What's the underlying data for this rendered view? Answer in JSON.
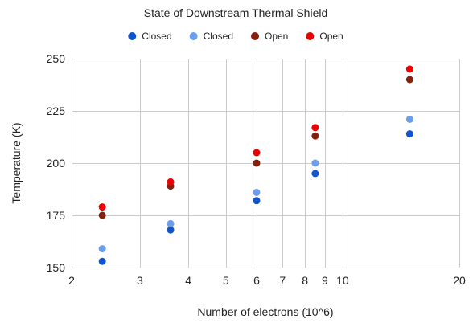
{
  "chart_data": {
    "type": "scatter",
    "title": "State of Downstream Thermal Shield",
    "xlabel": "Number of electrons (10^6)",
    "ylabel": "Temperature (K)",
    "x_scale": "log",
    "xlim": [
      2,
      20
    ],
    "ylim": [
      150,
      250
    ],
    "x_ticks": [
      2,
      3,
      4,
      5,
      6,
      7,
      8,
      9,
      10,
      20
    ],
    "y_ticks": [
      150,
      175,
      200,
      225,
      250
    ],
    "grid": true,
    "legend_position": "top",
    "series": [
      {
        "name": "Closed",
        "color": "#1155cc",
        "points": [
          [
            2.4,
            153
          ],
          [
            3.6,
            168
          ],
          [
            6.0,
            182
          ],
          [
            8.5,
            195
          ],
          [
            14.9,
            214
          ]
        ]
      },
      {
        "name": "Closed",
        "color": "#6d9eeb",
        "points": [
          [
            2.4,
            159
          ],
          [
            3.6,
            171
          ],
          [
            6.0,
            186
          ],
          [
            8.5,
            200
          ],
          [
            14.9,
            221
          ]
        ]
      },
      {
        "name": "Open",
        "color": "#85200c",
        "points": [
          [
            2.4,
            175
          ],
          [
            3.6,
            189
          ],
          [
            6.0,
            200
          ],
          [
            8.5,
            213
          ],
          [
            14.9,
            240
          ]
        ]
      },
      {
        "name": "Open",
        "color": "#ee0000",
        "points": [
          [
            2.4,
            179
          ],
          [
            3.6,
            191
          ],
          [
            6.0,
            205
          ],
          [
            8.5,
            217
          ],
          [
            14.9,
            245
          ]
        ]
      }
    ]
  }
}
